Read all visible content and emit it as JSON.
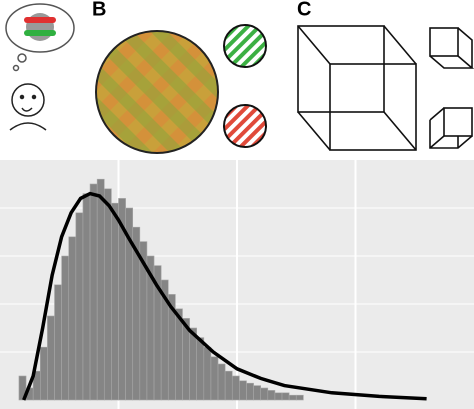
{
  "panels": {
    "b": "B",
    "c": "C"
  },
  "chart_data": {
    "type": "histogram",
    "bins": [
      4,
      5.5,
      7,
      8.5,
      10,
      11.5,
      13,
      14.5,
      16,
      17.5,
      19,
      20.5,
      22,
      23.5,
      25,
      26.5,
      28,
      29.5,
      31,
      32.5,
      34,
      35.5,
      37,
      38.5,
      40,
      41.5,
      43,
      44.5,
      46,
      47.5,
      49,
      50.5,
      52,
      53.5,
      55,
      56.5,
      58,
      59.5,
      61,
      62.5,
      64
    ],
    "values": [
      10,
      5,
      12,
      22,
      35,
      48,
      60,
      68,
      78,
      86,
      90,
      92,
      88,
      82,
      84,
      80,
      72,
      66,
      60,
      56,
      50,
      44,
      38,
      34,
      30,
      26,
      22,
      18,
      15,
      12,
      10,
      8,
      7,
      6,
      5,
      4,
      3,
      3,
      2,
      2
    ],
    "color": "#858585",
    "curve": {
      "color": "#000000",
      "x": [
        5,
        7,
        9,
        11,
        13,
        15,
        17,
        19,
        21,
        23,
        25,
        27,
        30,
        33,
        36,
        40,
        45,
        50,
        55,
        60,
        70,
        80,
        90
      ],
      "y": [
        0,
        10,
        30,
        52,
        68,
        78,
        84,
        86,
        85,
        81,
        75,
        68,
        58,
        48,
        39,
        29,
        20,
        13,
        9,
        6,
        3,
        1.5,
        0.5
      ]
    },
    "xlim": [
      0,
      100
    ],
    "ylim": [
      0,
      100
    ],
    "grid": true
  }
}
